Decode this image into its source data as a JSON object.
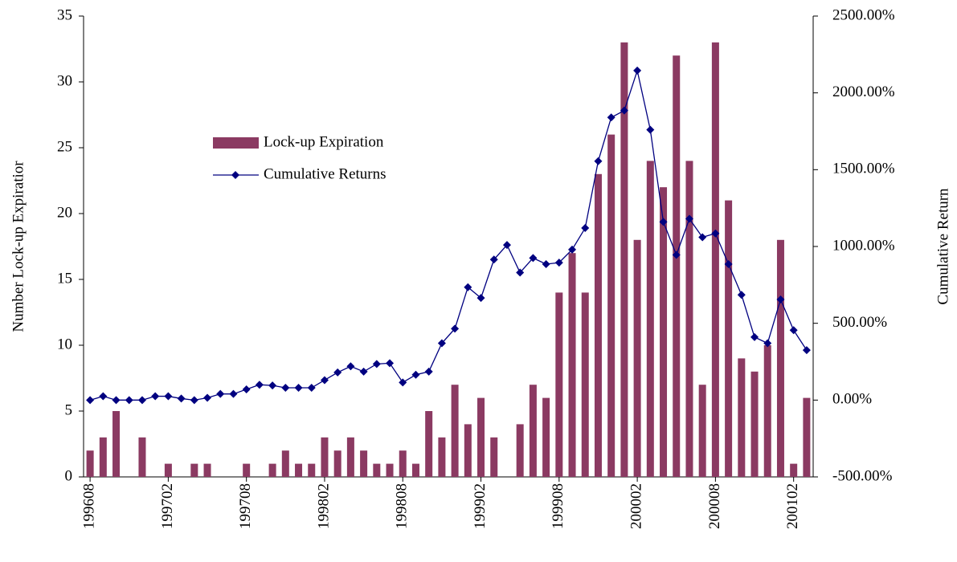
{
  "chart_data": {
    "type": "bar_line",
    "categories": [
      "199608",
      null,
      null,
      null,
      null,
      null,
      "199702",
      null,
      null,
      null,
      null,
      null,
      "199708",
      null,
      null,
      null,
      null,
      null,
      "199802",
      null,
      null,
      null,
      null,
      null,
      "199808",
      null,
      null,
      null,
      null,
      null,
      "199902",
      null,
      null,
      null,
      null,
      null,
      "199908",
      null,
      null,
      null,
      null,
      null,
      "200002",
      null,
      null,
      null,
      null,
      null,
      "200008",
      null,
      null,
      null,
      null,
      null,
      "200102",
      null
    ],
    "series": [
      {
        "name": "Lock-up Expiration",
        "color": "#8b3a62",
        "values": [
          2,
          3,
          5,
          0,
          3,
          0,
          1,
          0,
          1,
          1,
          0,
          0,
          1,
          0,
          1,
          2,
          1,
          1,
          3,
          2,
          3,
          2,
          1,
          1,
          2,
          1,
          5,
          3,
          7,
          4,
          6,
          3,
          0,
          4,
          7,
          6,
          14,
          17,
          14,
          23,
          26,
          33,
          18,
          24,
          22,
          32,
          24,
          7,
          33,
          21,
          9,
          8,
          10,
          18,
          1,
          6
        ]
      },
      {
        "name": "Cumulative Returns",
        "color": "#000080",
        "axis": "y2",
        "values": [
          0,
          25,
          0,
          0,
          0,
          25,
          25,
          10,
          0,
          15,
          40,
          40,
          70,
          100,
          95,
          80,
          80,
          80,
          130,
          180,
          220,
          185,
          235,
          240,
          115,
          165,
          185,
          370,
          465,
          735,
          665,
          915,
          1010,
          830,
          925,
          885,
          895,
          980,
          1120,
          1555,
          1840,
          1885,
          2145,
          1760,
          1160,
          945,
          1180,
          1060,
          1085,
          885,
          685,
          410,
          370,
          655,
          455,
          325
        ]
      }
    ],
    "y_label": "Number Lock-up Expiratior",
    "y2_label": "Cumulative Return",
    "ylim": [
      0,
      35
    ],
    "yticks": [
      0,
      5,
      10,
      15,
      20,
      25,
      30,
      35
    ],
    "y2lim": [
      -500,
      2500
    ],
    "y2ticks": [
      {
        "value": -500,
        "label": "-500.00%"
      },
      {
        "value": 0,
        "label": "0.00%"
      },
      {
        "value": 500,
        "label": "500.00%"
      },
      {
        "value": 1000,
        "label": "1000.00%"
      },
      {
        "value": 1500,
        "label": "1500.00%"
      },
      {
        "value": 2000,
        "label": "2000.00%"
      },
      {
        "value": 2500,
        "label": "2500.00%"
      }
    ]
  }
}
